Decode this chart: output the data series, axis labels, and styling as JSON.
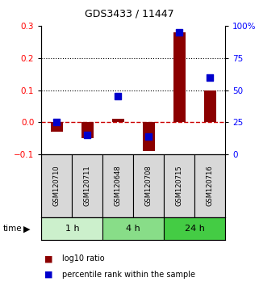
{
  "title": "GDS3433 / 11447",
  "samples": [
    "GSM120710",
    "GSM120711",
    "GSM120648",
    "GSM120708",
    "GSM120715",
    "GSM120716"
  ],
  "log10_ratio": [
    -0.03,
    -0.05,
    0.01,
    -0.09,
    0.28,
    0.1
  ],
  "percentile_rank": [
    25,
    15,
    45,
    14,
    95,
    60
  ],
  "time_groups": [
    {
      "label": "1 h",
      "start": 0,
      "end": 2,
      "color": "#ccf0cc"
    },
    {
      "label": "4 h",
      "start": 2,
      "end": 4,
      "color": "#88dd88"
    },
    {
      "label": "24 h",
      "start": 4,
      "end": 6,
      "color": "#44cc44"
    }
  ],
  "bar_color": "#8B0000",
  "square_color": "#0000CC",
  "left_ylim": [
    -0.1,
    0.3
  ],
  "right_ylim": [
    0,
    100
  ],
  "left_yticks": [
    -0.1,
    0.0,
    0.1,
    0.2,
    0.3
  ],
  "right_yticks": [
    0,
    25,
    50,
    75,
    100
  ],
  "right_yticklabels": [
    "0",
    "25",
    "50",
    "75",
    "100%"
  ],
  "dotted_lines": [
    0.1,
    0.2
  ],
  "zero_line_color": "#CC0000",
  "background_color": "#ffffff",
  "legend_red_label": "log10 ratio",
  "legend_blue_label": "percentile rank within the sample"
}
